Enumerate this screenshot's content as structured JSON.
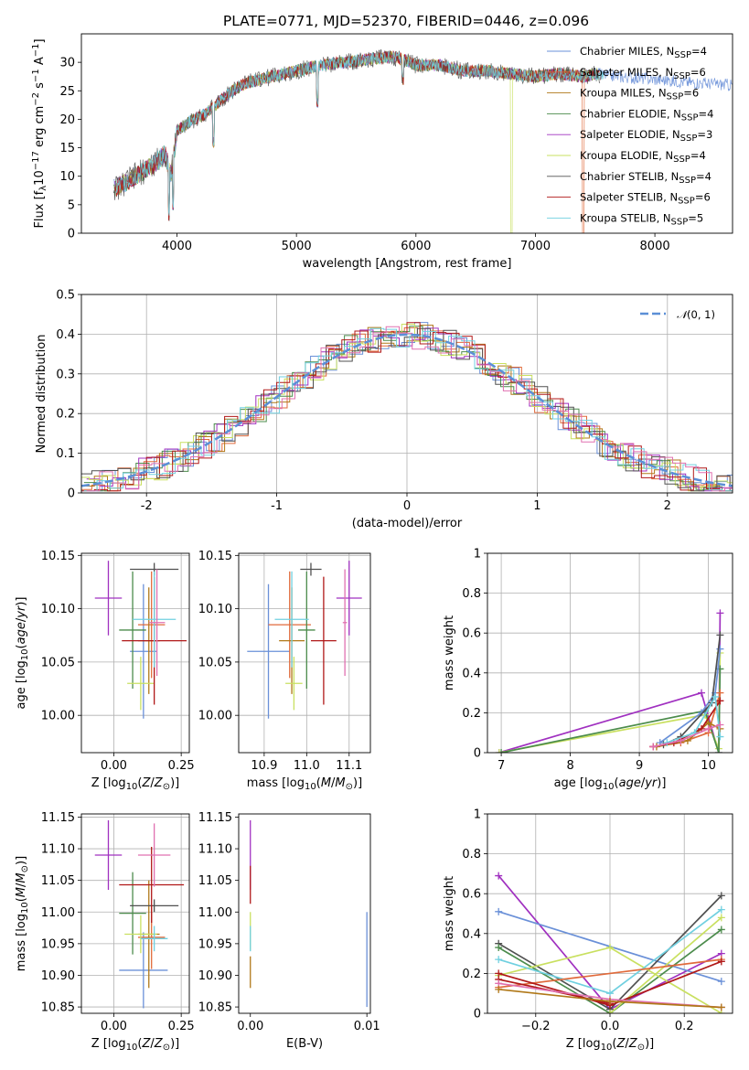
{
  "figure": {
    "title": "PLATE=0771, MJD=52370, FIBERID=0446, z=0.096"
  },
  "colors": {
    "cmiles": "#6a90d8",
    "smiles": "#e06a3b",
    "kmiles": "#b07818",
    "celodie": "#4c8c4c",
    "selodie": "#a030c0",
    "kelodie": "#c9e060",
    "cstelib": "#505050",
    "sstelib": "#b01818",
    "kstelib": "#70d0e0",
    "pinks": "#e070b0",
    "gauss": "#5b8fd6"
  },
  "chart_data": [
    {
      "id": "spectrum",
      "type": "line",
      "title": "PLATE=0771, MJD=52370, FIBERID=0446, z=0.096",
      "xlabel": "wavelength [Angstrom, rest frame]",
      "ylabel_html": "Flux [fλ 10^-17 erg cm^-2 s^-1 A^-1]",
      "xlim": [
        3200,
        8650
      ],
      "ylim": [
        0,
        35
      ],
      "xticks": [
        4000,
        5000,
        6000,
        7000,
        8000
      ],
      "yticks": [
        0,
        5,
        10,
        15,
        20,
        25,
        30
      ],
      "legend_position": "right",
      "series": [
        {
          "name": "Chabrier MILES, N_SSP=4",
          "color": "#6a90d8"
        },
        {
          "name": "Salpeter MILES, N_SSP=6",
          "color": "#e06a3b"
        },
        {
          "name": "Kroupa MILES, N_SSP=6",
          "color": "#b07818"
        },
        {
          "name": "Chabrier ELODIE, N_SSP=4",
          "color": "#4c8c4c"
        },
        {
          "name": "Salpeter ELODIE, N_SSP=3",
          "color": "#a030c0"
        },
        {
          "name": "Kroupa ELODIE, N_SSP=4",
          "color": "#c9e060"
        },
        {
          "name": "Chabrier STELIB, N_SSP=4",
          "color": "#505050"
        },
        {
          "name": "Salpeter STELIB, N_SSP=6",
          "color": "#b01818"
        },
        {
          "name": "Kroupa STELIB, N_SSP=5",
          "color": "#70d0e0"
        }
      ],
      "continuum": {
        "x": [
          3500,
          3650,
          3800,
          3900,
          3950,
          4000,
          4100,
          4200,
          4300,
          4400,
          4500,
          4600,
          4800,
          5000,
          5200,
          5400,
          5600,
          5800,
          5900,
          6000,
          6200,
          6400,
          6600,
          6800,
          7000,
          7200,
          7400,
          7500,
          7700,
          8000,
          8300,
          8650
        ],
        "y": [
          8,
          10,
          12,
          14,
          10,
          18,
          19.5,
          20.5,
          22,
          24,
          25.5,
          26.5,
          27.5,
          28.5,
          29.5,
          30,
          30.5,
          31,
          30.5,
          29.5,
          29.5,
          28.5,
          28.5,
          28,
          27.5,
          28,
          27.5,
          28,
          27.5,
          27,
          26.5,
          26
        ]
      },
      "absorption_dips": [
        {
          "x": 3934,
          "y": 2
        },
        {
          "x": 3969,
          "y": 4
        },
        {
          "x": 4305,
          "y": 15
        },
        {
          "x": 5175,
          "y": 22
        },
        {
          "x": 5890,
          "y": 26
        },
        {
          "x": 6800,
          "y": 0,
          "series": "Kroupa ELODIE, N_SSP=4"
        },
        {
          "x": 7400,
          "y": 0,
          "series": "Salpeter MILES, N_SSP=6"
        }
      ]
    },
    {
      "id": "residuals",
      "type": "histogram",
      "xlabel": "(data-model)/error",
      "ylabel": "Normed distribution",
      "xlim": [
        -2.5,
        2.5
      ],
      "ylim": [
        0,
        0.5
      ],
      "xticks": [
        -2,
        -1,
        0,
        1,
        2
      ],
      "yticks": [
        0.0,
        0.1,
        0.2,
        0.3,
        0.4,
        0.5
      ],
      "grid": true,
      "bin_width": 0.1,
      "legend": {
        "label": "N(0,1)",
        "position": "top-right"
      },
      "overlay": {
        "name": "N(0,1)",
        "mean": 0,
        "sigma": 1,
        "style": "dashed",
        "color": "#5b8fd6"
      }
    },
    {
      "id": "age-vs-Z",
      "type": "scatter-errorbar",
      "xlabel": "Z [log10(Z/Z⊙)]",
      "ylabel": "age [log10(age/yr)]",
      "xlim": [
        -0.12,
        0.28
      ],
      "ylim": [
        9.965,
        10.152
      ],
      "xticks": [
        0.0,
        0.25
      ],
      "xtick_labels": [
        "0.00",
        "0.25"
      ],
      "yticks": [
        10.0,
        10.05,
        10.1,
        10.15
      ],
      "ytick_labels": [
        "10.00",
        "10.05",
        "10.10",
        "10.15"
      ],
      "grid": true,
      "points": [
        {
          "series": "Chabrier MILES",
          "color": "#6a90d8",
          "x": 0.11,
          "y": 10.06,
          "xerr": 0.05,
          "yerr": 0.063
        },
        {
          "series": "Salpeter MILES",
          "color": "#e06a3b",
          "x": 0.14,
          "y": 10.085,
          "xerr": 0.05,
          "yerr": 0.05
        },
        {
          "series": "Kroupa MILES",
          "color": "#b07818",
          "x": 0.13,
          "y": 10.07,
          "xerr": 0.04,
          "yerr": 0.05
        },
        {
          "series": "Chabrier ELODIE",
          "color": "#4c8c4c",
          "x": 0.07,
          "y": 10.08,
          "xerr": 0.05,
          "yerr": 0.055
        },
        {
          "series": "Salpeter ELODIE",
          "color": "#a030c0",
          "x": -0.02,
          "y": 10.11,
          "xerr": 0.05,
          "yerr": 0.035
        },
        {
          "series": "Kroupa ELODIE",
          "color": "#c9e060",
          "x": 0.1,
          "y": 10.03,
          "xerr": 0.05,
          "yerr": 0.025
        },
        {
          "series": "Chabrier STELIB",
          "color": "#505050",
          "x": 0.15,
          "y": 10.137,
          "xerr": 0.09,
          "yerr": 0.006
        },
        {
          "series": "Salpeter STELIB",
          "color": "#b01818",
          "x": 0.15,
          "y": 10.07,
          "xerr": 0.12,
          "yerr": 0.06
        },
        {
          "series": "Kroupa STELIB",
          "color": "#70d0e0",
          "x": 0.15,
          "y": 10.09,
          "xerr": 0.08,
          "yerr": 0.045
        },
        {
          "series": "extra",
          "color": "#e070b0",
          "x": 0.16,
          "y": 10.087,
          "xerr": 0.03,
          "yerr": 0.05
        }
      ]
    },
    {
      "id": "age-vs-mass",
      "type": "scatter-errorbar",
      "xlabel": "mass [log10(M/M⊙)]",
      "ylabel": "",
      "xlim": [
        10.84,
        11.15
      ],
      "ylim": [
        9.965,
        10.152
      ],
      "xticks": [
        10.9,
        11.0,
        11.1
      ],
      "xtick_labels": [
        "10.9",
        "11.0",
        "11.1"
      ],
      "yticks": [
        10.0,
        10.05,
        10.1,
        10.15
      ],
      "ytick_labels": [
        "10.00",
        "10.05",
        "10.10",
        "10.15"
      ],
      "grid": true,
      "points": [
        {
          "series": "Chabrier MILES",
          "color": "#6a90d8",
          "x": 10.91,
          "y": 10.06,
          "xerr": 0.05,
          "yerr": 0.063
        },
        {
          "series": "Salpeter MILES",
          "color": "#e06a3b",
          "x": 10.96,
          "y": 10.085,
          "xerr": 0.05,
          "yerr": 0.05
        },
        {
          "series": "Kroupa MILES",
          "color": "#b07818",
          "x": 10.965,
          "y": 10.07,
          "xerr": 0.03,
          "yerr": 0.05
        },
        {
          "series": "Chabrier ELODIE",
          "color": "#4c8c4c",
          "x": 11.0,
          "y": 10.08,
          "xerr": 0.02,
          "yerr": 0.055
        },
        {
          "series": "Salpeter ELODIE",
          "color": "#a030c0",
          "x": 11.1,
          "y": 10.11,
          "xerr": 0.03,
          "yerr": 0.035
        },
        {
          "series": "Kroupa ELODIE",
          "color": "#c9e060",
          "x": 10.97,
          "y": 10.03,
          "xerr": 0.02,
          "yerr": 0.025
        },
        {
          "series": "Chabrier STELIB",
          "color": "#505050",
          "x": 11.01,
          "y": 10.137,
          "xerr": 0.025,
          "yerr": 0.006
        },
        {
          "series": "Salpeter STELIB",
          "color": "#b01818",
          "x": 11.04,
          "y": 10.07,
          "xerr": 0.03,
          "yerr": 0.06
        },
        {
          "series": "Kroupa STELIB",
          "color": "#70d0e0",
          "x": 10.965,
          "y": 10.09,
          "xerr": 0.04,
          "yerr": 0.045
        },
        {
          "series": "extra",
          "color": "#e070b0",
          "x": 11.09,
          "y": 10.087,
          "xerr": 0.005,
          "yerr": 0.05
        }
      ]
    },
    {
      "id": "weight-vs-age",
      "type": "line",
      "xlabel": "age [log10(age/yr)]",
      "ylabel": "mass weight",
      "xlim": [
        6.8,
        10.35
      ],
      "ylim": [
        0,
        1
      ],
      "xticks": [
        7,
        8,
        9,
        10
      ],
      "yticks": [
        0.0,
        0.2,
        0.4,
        0.6,
        0.8,
        1.0
      ],
      "grid": true,
      "series": [
        {
          "color": "#a030c0",
          "x": [
            6.97,
            9.9,
            10.15,
            10.17
          ],
          "y": [
            0.0,
            0.3,
            0.0,
            0.7
          ]
        },
        {
          "color": "#c9e060",
          "x": [
            6.97,
            9.95,
            10.15,
            10.17
          ],
          "y": [
            0.0,
            0.19,
            0.02,
            0.5
          ]
        },
        {
          "color": "#4c8c4c",
          "x": [
            7.0,
            9.95,
            10.15,
            10.17
          ],
          "y": [
            0.0,
            0.21,
            0.0,
            0.42
          ]
        },
        {
          "color": "#6a90d8",
          "x": [
            9.3,
            9.9,
            10.1,
            10.17
          ],
          "y": [
            0.05,
            0.2,
            0.3,
            0.52
          ]
        },
        {
          "color": "#e06a3b",
          "x": [
            9.2,
            9.6,
            10.0,
            10.17
          ],
          "y": [
            0.03,
            0.05,
            0.1,
            0.3
          ]
        },
        {
          "color": "#b07818",
          "x": [
            9.25,
            9.7,
            10.0,
            10.17
          ],
          "y": [
            0.03,
            0.06,
            0.15,
            0.12
          ]
        },
        {
          "color": "#505050",
          "x": [
            9.35,
            9.6,
            10.05,
            10.17
          ],
          "y": [
            0.04,
            0.08,
            0.25,
            0.59
          ]
        },
        {
          "color": "#b01818",
          "x": [
            9.2,
            9.5,
            9.9,
            10.17
          ],
          "y": [
            0.03,
            0.05,
            0.12,
            0.26
          ]
        },
        {
          "color": "#70d0e0",
          "x": [
            9.4,
            9.8,
            10.1,
            10.17
          ],
          "y": [
            0.05,
            0.1,
            0.28,
            0.08
          ]
        },
        {
          "color": "#e070b0",
          "x": [
            9.2,
            9.6,
            10.0,
            10.17
          ],
          "y": [
            0.03,
            0.06,
            0.12,
            0.14
          ]
        }
      ]
    },
    {
      "id": "mass-vs-Z",
      "type": "scatter-errorbar",
      "xlabel": "Z [log10(Z/Z⊙)]",
      "ylabel": "mass [log10(M/M⊙)]",
      "xlim": [
        -0.12,
        0.28
      ],
      "ylim": [
        10.84,
        11.155
      ],
      "xticks": [
        0.0,
        0.25
      ],
      "xtick_labels": [
        "0.00",
        "0.25"
      ],
      "yticks": [
        10.85,
        10.9,
        10.95,
        11.0,
        11.05,
        11.1,
        11.15
      ],
      "ytick_labels": [
        "10.85",
        "10.90",
        "10.95",
        "11.00",
        "11.05",
        "11.10",
        "11.15"
      ],
      "grid": true,
      "points": [
        {
          "series": "Chabrier MILES",
          "color": "#6a90d8",
          "x": 0.11,
          "y": 10.908,
          "xerr": 0.09,
          "yerr": 0.06
        },
        {
          "series": "Salpeter MILES",
          "color": "#e06a3b",
          "x": 0.14,
          "y": 10.96,
          "xerr": 0.05,
          "yerr": 0.05
        },
        {
          "series": "Kroupa MILES",
          "color": "#b07818",
          "x": 0.13,
          "y": 10.965,
          "xerr": 0.04,
          "yerr": 0.085
        },
        {
          "series": "Chabrier ELODIE",
          "color": "#4c8c4c",
          "x": 0.07,
          "y": 10.998,
          "xerr": 0.05,
          "yerr": 0.065
        },
        {
          "series": "Salpeter ELODIE",
          "color": "#a030c0",
          "x": -0.02,
          "y": 11.09,
          "xerr": 0.05,
          "yerr": 0.055
        },
        {
          "series": "Kroupa ELODIE",
          "color": "#c9e060",
          "x": 0.1,
          "y": 10.965,
          "xerr": 0.06,
          "yerr": 0.03
        },
        {
          "series": "Chabrier STELIB",
          "color": "#505050",
          "x": 0.15,
          "y": 11.01,
          "xerr": 0.09,
          "yerr": 0.01
        },
        {
          "series": "Salpeter STELIB",
          "color": "#b01818",
          "x": 0.14,
          "y": 11.043,
          "xerr": 0.12,
          "yerr": 0.06
        },
        {
          "series": "Kroupa STELIB",
          "color": "#70d0e0",
          "x": 0.15,
          "y": 10.958,
          "xerr": 0.05,
          "yerr": 0.02
        },
        {
          "series": "extra",
          "color": "#e070b0",
          "x": 0.15,
          "y": 11.09,
          "xerr": 0.06,
          "yerr": 0.05
        }
      ]
    },
    {
      "id": "mass-vs-ebv",
      "type": "errorbar",
      "xlabel": "E(B-V)",
      "ylabel": "",
      "xlim": [
        -0.001,
        0.0103
      ],
      "ylim": [
        10.84,
        11.155
      ],
      "xticks": [
        0.0,
        0.01
      ],
      "xtick_labels": [
        "0.00",
        "0.01"
      ],
      "yticks": [
        10.85,
        10.9,
        10.95,
        11.0,
        11.05,
        11.1,
        11.15
      ],
      "ytick_labels": [
        "10.85",
        "10.90",
        "10.95",
        "11.00",
        "11.05",
        "11.10",
        "11.15"
      ],
      "grid": false,
      "points": [
        {
          "color": "#a030c0",
          "x": 0.0,
          "y": 11.09,
          "yerr": 0.055
        },
        {
          "color": "#b01818",
          "x": 0.0,
          "y": 11.043,
          "yerr": 0.03
        },
        {
          "color": "#c9e060",
          "x": 0.0,
          "y": 10.97,
          "yerr": 0.03
        },
        {
          "color": "#70d0e0",
          "x": 0.0,
          "y": 10.958,
          "yerr": 0.02
        },
        {
          "color": "#b07818",
          "x": 0.0,
          "y": 10.905,
          "yerr": 0.025
        },
        {
          "color": "#6a90d8",
          "x": 0.01,
          "y": 10.925,
          "yerr": 0.075
        }
      ]
    },
    {
      "id": "weight-vs-Z",
      "type": "line",
      "xlabel": "Z [log10(Z/Z⊙)]",
      "ylabel": "mass weight",
      "xlim": [
        -0.33,
        0.33
      ],
      "ylim": [
        0,
        1
      ],
      "xticks": [
        -0.2,
        0.0,
        0.2
      ],
      "xtick_labels": [
        "−0.2",
        "0.0",
        "0.2"
      ],
      "yticks": [
        0.0,
        0.2,
        0.4,
        0.6,
        0.8,
        1.0
      ],
      "grid": true,
      "series": [
        {
          "color": "#a030c0",
          "x": [
            -0.3,
            0.0,
            0.3
          ],
          "y": [
            0.69,
            0.02,
            0.3
          ]
        },
        {
          "color": "#6a90d8",
          "x": [
            -0.3,
            0.3
          ],
          "y": [
            0.51,
            0.16
          ]
        },
        {
          "color": "#505050",
          "x": [
            -0.3,
            0.0,
            0.3
          ],
          "y": [
            0.35,
            0.02,
            0.59
          ]
        },
        {
          "color": "#4c8c4c",
          "x": [
            -0.3,
            0.0,
            0.3
          ],
          "y": [
            0.33,
            0.0,
            0.42
          ]
        },
        {
          "color": "#c9e060",
          "x": [
            -0.3,
            0.0,
            0.3
          ],
          "y": [
            0.19,
            0.33,
            0.0
          ]
        },
        {
          "color": "#c9e060",
          "x": [
            0.0,
            0.3
          ],
          "y": [
            0.0,
            0.48
          ]
        },
        {
          "color": "#70d0e0",
          "x": [
            -0.3,
            0.0,
            0.3
          ],
          "y": [
            0.27,
            0.1,
            0.52
          ]
        },
        {
          "color": "#e06a3b",
          "x": [
            -0.3,
            0.3
          ],
          "y": [
            0.13,
            0.27
          ]
        },
        {
          "color": "#b01818",
          "x": [
            -0.3,
            0.0,
            0.3
          ],
          "y": [
            0.2,
            0.04,
            0.26
          ]
        },
        {
          "color": "#b01818",
          "x": [
            -0.3,
            0.0
          ],
          "y": [
            0.17,
            0.05
          ]
        },
        {
          "color": "#e070b0",
          "x": [
            -0.3,
            0.0,
            0.3
          ],
          "y": [
            0.15,
            0.07,
            0.03
          ]
        },
        {
          "color": "#b07818",
          "x": [
            -0.3,
            0.0,
            0.3
          ],
          "y": [
            0.12,
            0.06,
            0.03
          ]
        }
      ]
    }
  ]
}
